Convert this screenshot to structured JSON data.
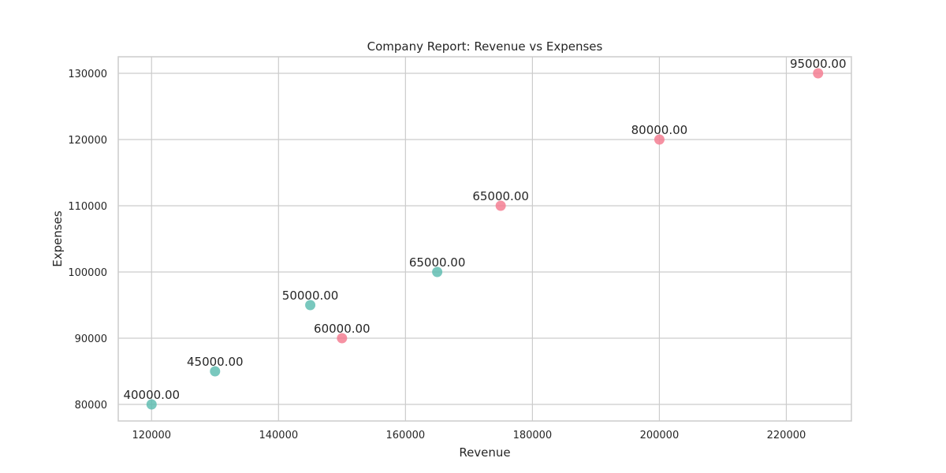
{
  "chart_data": {
    "type": "scatter",
    "title": "Company Report: Revenue vs Expenses",
    "xlabel": "Revenue",
    "ylabel": "Expenses",
    "xlim": [
      114750,
      230250
    ],
    "ylim": [
      77500,
      132500
    ],
    "x_ticks": [
      120000,
      140000,
      160000,
      180000,
      200000,
      220000
    ],
    "y_ticks": [
      80000,
      90000,
      100000,
      110000,
      120000,
      130000
    ],
    "grid": true,
    "legend": "none",
    "colors": {
      "teal": "#5bbcb0",
      "pink": "#f47a8f"
    },
    "points": [
      {
        "x": 120000,
        "y": 80000,
        "label": "40000.00",
        "color": "teal"
      },
      {
        "x": 130000,
        "y": 85000,
        "label": "45000.00",
        "color": "teal"
      },
      {
        "x": 145000,
        "y": 95000,
        "label": "50000.00",
        "color": "teal"
      },
      {
        "x": 150000,
        "y": 90000,
        "label": "60000.00",
        "color": "pink"
      },
      {
        "x": 165000,
        "y": 100000,
        "label": "65000.00",
        "color": "teal"
      },
      {
        "x": 175000,
        "y": 110000,
        "label": "65000.00",
        "color": "pink"
      },
      {
        "x": 200000,
        "y": 120000,
        "label": "80000.00",
        "color": "pink"
      },
      {
        "x": 225000,
        "y": 130000,
        "label": "95000.00",
        "color": "pink"
      }
    ]
  }
}
